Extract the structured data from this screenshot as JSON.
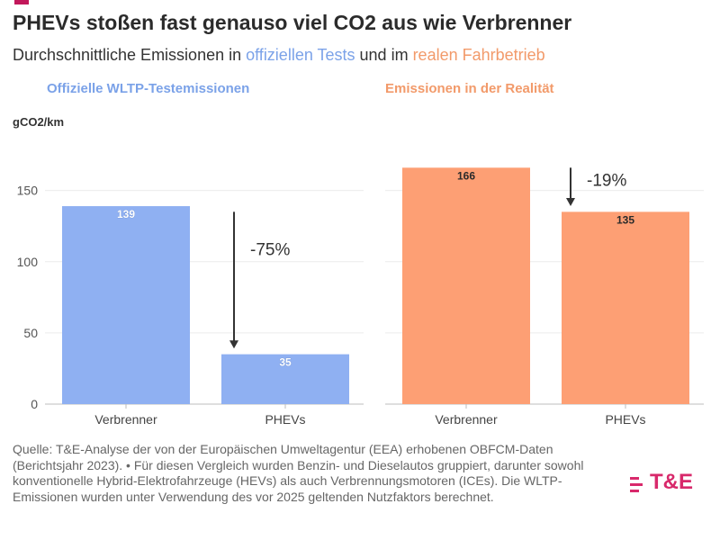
{
  "title": "PHEVs stoßen fast genauso viel CO2 aus wie Verbrenner",
  "subtitle": {
    "before": "Durchschnittliche Emissionen in ",
    "highlight1": "offiziellen Tests",
    "middle": " und im ",
    "highlight2": "realen Fahrbetrieb"
  },
  "unit_label": "gCO2/km",
  "source_text": "Quelle: T&E-Analyse der von der Europäischen Umweltagentur (EEA) erhobenen OBFCM-Daten (Berichtsjahr 2023). • Für diesen Vergleich wurden Benzin- und Dieselautos gruppiert, darunter sowohl konventionelle Hybrid-Elektrofahrzeuge (HEVs) als auch Verbrennungsmotoren (ICEs). Die WLTP-Emissionen wurden unter Verwendung des vor 2025 geltenden Nutzfaktors berechnet.",
  "logo_text": "T&E",
  "colors": {
    "wltp": "#8fb0f2",
    "real": "#fd9f74",
    "blue_text": "#7ba2e8",
    "orange_text": "#f29a6a",
    "accent": "#c2185b",
    "logo": "#d8296b"
  },
  "chart_data": [
    {
      "type": "bar",
      "title": "Offizielle WLTP-Testemissionen",
      "ylabel": "gCO2/km",
      "categories": [
        "Verbrenner",
        "PHEVs"
      ],
      "values": [
        139,
        35
      ],
      "data_labels": [
        "139",
        "35"
      ],
      "ylim": [
        0,
        170
      ],
      "yticks": [
        0,
        50,
        100,
        150
      ],
      "ytick_labels": [
        "0",
        "50",
        "100",
        "150"
      ],
      "grid": true,
      "annotation": {
        "text": "-75%",
        "from": 135,
        "to": 39
      },
      "color": "#8fb0f2"
    },
    {
      "type": "bar",
      "title": "Emissionen in der Realität",
      "categories": [
        "Verbrenner",
        "PHEVs"
      ],
      "values": [
        166,
        135
      ],
      "data_labels": [
        "166",
        "135"
      ],
      "ylim": [
        0,
        170
      ],
      "grid": true,
      "annotation": {
        "text": "-19%",
        "from": 166,
        "to": 139
      },
      "color": "#fd9f74"
    }
  ]
}
